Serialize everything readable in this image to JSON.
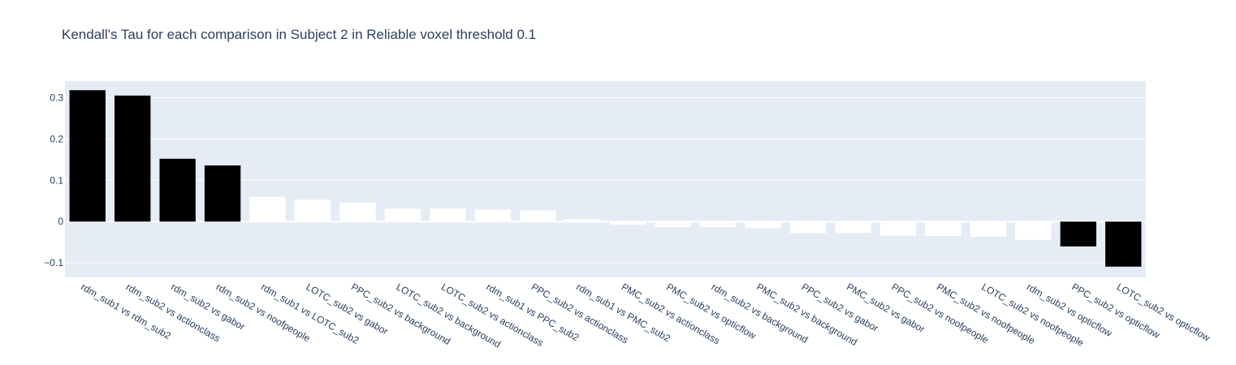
{
  "chart_data": {
    "type": "bar",
    "title": "Kendall's Tau for each comparison in Subject 2 in Reliable voxel threshold 0.1",
    "xlabel": "",
    "ylabel": "",
    "ylim": [
      -0.135,
      0.34
    ],
    "yticks": [
      -0.1,
      0,
      0.1,
      0.2,
      0.3
    ],
    "ytick_labels": [
      "−0.1",
      "0",
      "0.1",
      "0.2",
      "0.3"
    ],
    "grid": true,
    "plot_background": "#e5ecf6",
    "grid_color": "#ffffff",
    "significant_color": "#000000",
    "nonsignificant_color": "#ffffff",
    "categories": [
      "rdm_sub1 vs rdm_sub2",
      "rdm_sub2 vs actionclass",
      "rdm_sub2 vs gabor",
      "rdm_sub2 vs noofpeople",
      "rdm_sub1 vs LOTC_sub2",
      "LOTC_sub2 vs gabor",
      "PPC_sub2 vs background",
      "LOTC_sub2 vs background",
      "LOTC_sub2 vs actionclass",
      "rdm_sub1 vs PPC_sub2",
      "PPC_sub2 vs actionclass",
      "rdm_sub1 vs PMC_sub2",
      "PMC_sub2 vs actionclass",
      "PMC_sub2 vs opticflow",
      "rdm_sub2 vs background",
      "PMC_sub2 vs background",
      "PPC_sub2 vs gabor",
      "PMC_sub2 vs gabor",
      "PPC_sub2 vs noofpeople",
      "PMC_sub2 vs noofpeople",
      "LOTC_sub2 vs noofpeople",
      "rdm_sub2 vs opticflow",
      "PPC_sub2 vs opticflow",
      "LOTC_sub2 vs opticflow"
    ],
    "values": [
      0.318,
      0.305,
      0.152,
      0.136,
      0.06,
      0.053,
      0.046,
      0.031,
      0.031,
      0.029,
      0.027,
      0.006,
      -0.008,
      -0.013,
      -0.013,
      -0.016,
      -0.028,
      -0.028,
      -0.034,
      -0.035,
      -0.037,
      -0.044,
      -0.06,
      -0.109
    ],
    "significant": [
      true,
      true,
      true,
      true,
      false,
      false,
      false,
      false,
      false,
      false,
      false,
      false,
      false,
      false,
      false,
      false,
      false,
      false,
      false,
      false,
      false,
      false,
      true,
      true
    ]
  }
}
